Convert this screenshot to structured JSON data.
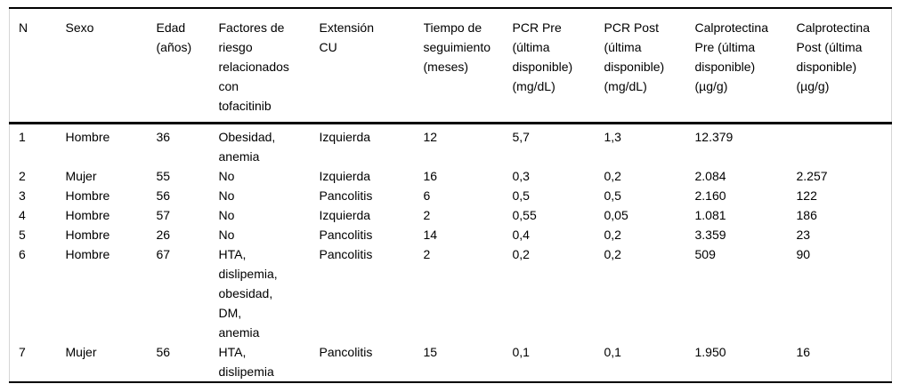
{
  "colors": {
    "background": "#ffffff",
    "text": "#000000",
    "horizontal_rule": "#000000",
    "side_border": "#d6d6d6"
  },
  "chart_data": {
    "type": "table",
    "columns": [
      "N",
      "Sexo",
      "Edad\n(años)",
      "Factores de\nriesgo\nrelacionados\ncon\ntofacitinib",
      "Extensión\nCU",
      "Tiempo de\nseguimiento\n(meses)",
      "PCR Pre\n(última\ndisponible)\n(mg/dL)",
      "PCR Post\n(última\ndisponible)\n(mg/dL)",
      "Calprotectina\nPre (última\ndisponible)\n(µg/g)",
      "Calprotectina\nPost (última\ndisponible)\n(µg/g)"
    ],
    "rows": [
      [
        "1",
        "Hombre",
        "36",
        "Obesidad,\nanemia",
        "Izquierda",
        "12",
        "5,7",
        "1,3",
        "12.379",
        ""
      ],
      [
        "2",
        "Mujer",
        "55",
        "No",
        "Izquierda",
        "16",
        "0,3",
        "0,2",
        "2.084",
        "2.257"
      ],
      [
        "3",
        "Hombre",
        "56",
        "No",
        "Pancolitis",
        "6",
        "0,5",
        "0,5",
        "2.160",
        "122"
      ],
      [
        "4",
        "Hombre",
        "57",
        "No",
        "Izquierda",
        "2",
        "0,55",
        "0,05",
        "1.081",
        "186"
      ],
      [
        "5",
        "Hombre",
        "26",
        "No",
        "Pancolitis",
        "14",
        "0,4",
        "0,2",
        "3.359",
        "23"
      ],
      [
        "6",
        "Hombre",
        "67",
        "HTA,\ndislipemia,\nobesidad,\nDM,\nanemia",
        "Pancolitis",
        "2",
        "0,2",
        "0,2",
        "509",
        "90"
      ],
      [
        "7",
        "Mujer",
        "56",
        "HTA,\ndislipemia",
        "Pancolitis",
        "15",
        "0,1",
        "0,1",
        "1.950",
        "16"
      ]
    ]
  }
}
